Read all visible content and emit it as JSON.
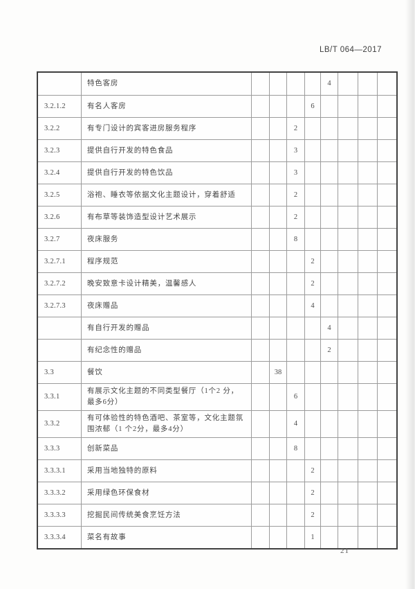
{
  "page": {
    "header_ref": "LB/T 064—2017",
    "page_number": "21"
  },
  "table": {
    "score_column_count": 8,
    "rows": [
      {
        "code": "",
        "desc": "特色客房",
        "scores": [
          "",
          "",
          "",
          "",
          "4",
          "",
          "",
          ""
        ]
      },
      {
        "code": "3.2.1.2",
        "desc": "有名人客房",
        "scores": [
          "",
          "",
          "",
          "6",
          "",
          "",
          "",
          ""
        ]
      },
      {
        "code": "3.2.2",
        "desc": "有专门设计的宾客进房服务程序",
        "scores": [
          "",
          "",
          "2",
          "",
          "",
          "",
          "",
          ""
        ]
      },
      {
        "code": "3.2.3",
        "desc": "提供自行开发的特色食品",
        "scores": [
          "",
          "",
          "3",
          "",
          "",
          "",
          "",
          ""
        ]
      },
      {
        "code": "3.2.4",
        "desc": "提供自行开发的特色饮品",
        "scores": [
          "",
          "",
          "3",
          "",
          "",
          "",
          "",
          ""
        ]
      },
      {
        "code": "3.2.5",
        "desc": "浴袍、睡衣等依据文化主题设计，穿着舒适",
        "scores": [
          "",
          "",
          "2",
          "",
          "",
          "",
          "",
          ""
        ]
      },
      {
        "code": "3.2.6",
        "desc": "有布草等装饰造型设计艺术展示",
        "scores": [
          "",
          "",
          "2",
          "",
          "",
          "",
          "",
          ""
        ]
      },
      {
        "code": "3.2.7",
        "desc": "夜床服务",
        "scores": [
          "",
          "",
          "8",
          "",
          "",
          "",
          "",
          ""
        ]
      },
      {
        "code": "3.2.7.1",
        "desc": "程序规范",
        "scores": [
          "",
          "",
          "",
          "2",
          "",
          "",
          "",
          ""
        ]
      },
      {
        "code": "3.2.7.2",
        "desc": "晚安致意卡设计精美，温馨感人",
        "scores": [
          "",
          "",
          "",
          "2",
          "",
          "",
          "",
          ""
        ]
      },
      {
        "code": "3.2.7.3",
        "desc": "夜床赠品",
        "scores": [
          "",
          "",
          "",
          "4",
          "",
          "",
          "",
          ""
        ]
      },
      {
        "code": "",
        "desc": "有自行开发的赠品",
        "scores": [
          "",
          "",
          "",
          "",
          "4",
          "",
          "",
          ""
        ]
      },
      {
        "code": "",
        "desc": "有纪念性的赠品",
        "scores": [
          "",
          "",
          "",
          "",
          "2",
          "",
          "",
          ""
        ]
      },
      {
        "code": "3.3",
        "desc": "餐饮",
        "scores": [
          "",
          "38",
          "",
          "",
          "",
          "",
          "",
          ""
        ]
      },
      {
        "code": "3.3.1",
        "desc": "有展示文化主题的不同类型餐厅（1个2 分，最多6分）",
        "scores": [
          "",
          "",
          "6",
          "",
          "",
          "",
          "",
          ""
        ]
      },
      {
        "code": "3.3.2",
        "desc": "有可体验性的特色酒吧、茶室等，文化主题氛围浓郁（1 个2分，最多4分）",
        "scores": [
          "",
          "",
          "4",
          "",
          "",
          "",
          "",
          ""
        ]
      },
      {
        "code": "3.3.3",
        "desc": "创新菜品",
        "scores": [
          "",
          "",
          "8",
          "",
          "",
          "",
          "",
          ""
        ]
      },
      {
        "code": "3.3.3.1",
        "desc": "采用当地独特的原料",
        "scores": [
          "",
          "",
          "",
          "2",
          "",
          "",
          "",
          ""
        ]
      },
      {
        "code": "3.3.3.2",
        "desc": "采用绿色环保食材",
        "scores": [
          "",
          "",
          "",
          "2",
          "",
          "",
          "",
          ""
        ]
      },
      {
        "code": "3.3.3.3",
        "desc": "挖掘民间传统美食烹饪方法",
        "scores": [
          "",
          "",
          "",
          "2",
          "",
          "",
          "",
          ""
        ]
      },
      {
        "code": "3.3.3.4",
        "desc": "菜名有故事",
        "scores": [
          "",
          "",
          "",
          "1",
          "",
          "",
          "",
          ""
        ]
      }
    ]
  }
}
